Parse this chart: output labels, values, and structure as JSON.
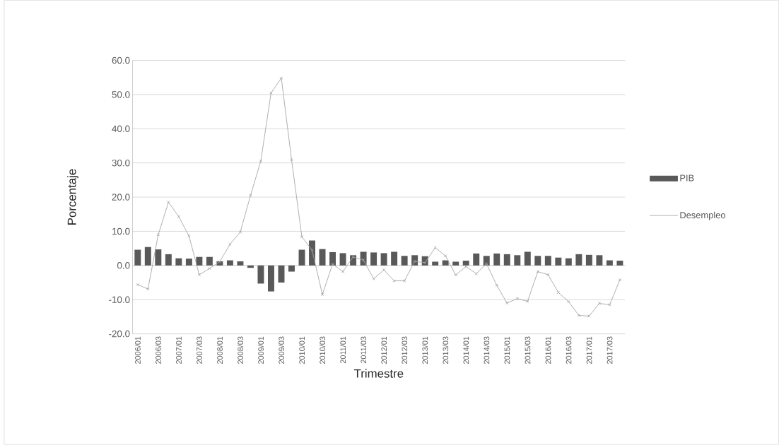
{
  "chart_data": {
    "type": "bar",
    "xlabel": "Trimestre",
    "ylabel": "Porcentaje",
    "categories": [
      "2006/01",
      null,
      "2006/03",
      null,
      "2007/01",
      null,
      "2007/03",
      null,
      "2008/01",
      null,
      "2008/03",
      null,
      "2009/01",
      null,
      "2009/03",
      null,
      "2010/01",
      null,
      "2010/03",
      null,
      "2011/01",
      null,
      "2011/03",
      null,
      "2012/01",
      null,
      "2012/03",
      null,
      "2013/01",
      null,
      "2013/03",
      null,
      "2014/01",
      null,
      "2014/03",
      null,
      "2015/01",
      null,
      "2015/03",
      null,
      "2016/01",
      null,
      "2016/03",
      null,
      "2017/01",
      null,
      "2017/03",
      null
    ],
    "series": [
      {
        "name": "PIB",
        "color": "#595959",
        "values": [
          4.6,
          5.4,
          4.7,
          3.3,
          2.1,
          2.0,
          2.5,
          2.5,
          1.2,
          1.5,
          1.2,
          -0.7,
          -5.3,
          -7.6,
          -5.0,
          -1.8,
          4.6,
          7.3,
          4.8,
          3.9,
          3.6,
          3.0,
          4.0,
          3.8,
          3.6,
          4.0,
          2.8,
          3.0,
          2.7,
          1.1,
          1.5,
          1.1,
          1.4,
          3.5,
          2.8,
          3.5,
          3.3,
          3.0,
          4.0,
          2.8,
          2.8,
          2.3,
          2.1,
          3.3,
          3.1,
          3.0,
          1.5,
          1.4
        ]
      },
      {
        "name": "Desempleo",
        "type": "line",
        "color": "#a6a6a6",
        "marker": "cross",
        "values": [
          -5.6,
          -6.9,
          9.0,
          18.5,
          14.3,
          8.6,
          -2.7,
          -0.9,
          1.1,
          6.2,
          9.8,
          20.5,
          30.6,
          50.5,
          54.8,
          30.9,
          8.4,
          4.5,
          -8.5,
          0.4,
          -1.8,
          2.5,
          1.6,
          -3.9,
          -1.3,
          -4.5,
          -4.5,
          1.2,
          0.8,
          5.2,
          2.8,
          -2.8,
          -0.3,
          -2.4,
          0.5,
          -5.8,
          -11.0,
          -9.7,
          -10.5,
          -1.8,
          -2.7,
          -7.9,
          -10.6,
          -14.6,
          -14.8,
          -11.1,
          -11.5,
          -4.2
        ]
      }
    ],
    "ylim": [
      -20,
      60
    ],
    "yticks": [
      {
        "value": -20,
        "label": "-20.0"
      },
      {
        "value": -10,
        "label": "-10.0"
      },
      {
        "value": 0,
        "label": "0.0"
      },
      {
        "value": 10,
        "label": "10.0"
      },
      {
        "value": 20,
        "label": "20.0"
      },
      {
        "value": 30,
        "label": "30.0"
      },
      {
        "value": 40,
        "label": "40.0"
      },
      {
        "value": 50,
        "label": "50.0"
      },
      {
        "value": 60,
        "label": "60.0"
      }
    ],
    "grid": "y",
    "legend": "right"
  }
}
